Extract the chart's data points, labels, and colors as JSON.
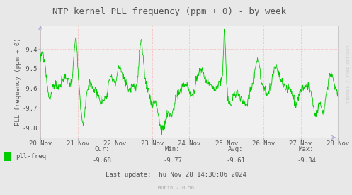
{
  "title": "NTP kernel PLL frequency (ppm + 0) - by week",
  "ylabel": "PLL frequency (ppm + 0)",
  "xlabel_ticks": [
    "20 Nov",
    "21 Nov",
    "22 Nov",
    "23 Nov",
    "24 Nov",
    "25 Nov",
    "26 Nov",
    "27 Nov",
    "28 Nov"
  ],
  "ylim": [
    -9.85,
    -9.28
  ],
  "yticks": [
    -9.8,
    -9.7,
    -9.6,
    -9.5,
    -9.4
  ],
  "line_color": "#00cc00",
  "bg_color": "#e8e8e8",
  "plot_bg_color": "#f0f0f0",
  "grid_color": "#ff9999",
  "legend_label": "pll-freq",
  "legend_color": "#00cc00",
  "cur": "-9.68",
  "min_val": "-9.77",
  "avg": "-9.61",
  "max_val": "-9.34",
  "last_update": "Last update: Thu Nov 28 14:30:06 2024",
  "munin_version": "Munin 2.0.56",
  "rrdtool_text": "RRDTOOL / TOBI OETIKER",
  "title_fontsize": 9,
  "label_fontsize": 6.5,
  "tick_fontsize": 6.5,
  "num_points": 800
}
